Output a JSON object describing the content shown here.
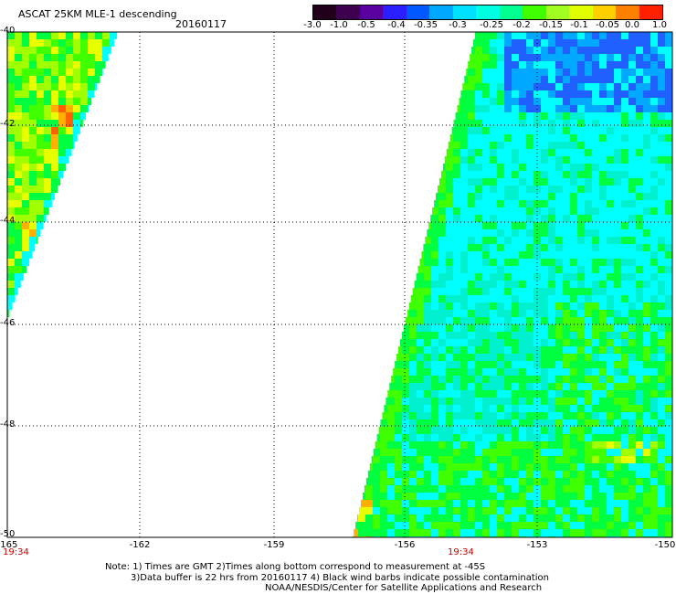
{
  "header": {
    "title": "ASCAT 25KM MLE-1 descending",
    "date": "20160117"
  },
  "colorbar": {
    "colors": [
      "#20001a",
      "#3d004f",
      "#5a00a0",
      "#2a20ff",
      "#0058ff",
      "#00a8ff",
      "#00e0ff",
      "#00ffe0",
      "#00ff90",
      "#40ff00",
      "#a0ff20",
      "#e0ff00",
      "#ffd000",
      "#ff8000",
      "#ff2000"
    ],
    "ticks": [
      "-3.0",
      "-1.0",
      "-0.5",
      "-0.4",
      "-0.35",
      "-0.3",
      "-0.25",
      "-0.2",
      "-0.15",
      "-0.1",
      "-0.05",
      "0.0",
      "1.0"
    ]
  },
  "map": {
    "lat_labels": [
      "-40",
      "-42",
      "-44",
      "-46",
      "-48",
      "-50"
    ],
    "lon_labels": [
      "-165",
      "-162",
      "-159",
      "-156",
      "-153",
      "-150"
    ],
    "time_labels": [
      "19:34",
      "19:34"
    ],
    "palette": {
      "cyan": "#00ffff",
      "aqua": "#00f0d0",
      "green": "#00ff40",
      "lime": "#40ff00",
      "yellowgreen": "#a0ff00",
      "yellow": "#e8ff00",
      "orange": "#ffb000",
      "red": "#ff6000",
      "blue": "#2060ff",
      "skyblue": "#00a8ff"
    }
  },
  "footer": {
    "line1": "Note: 1) Times are GMT 2)Times along bottom correspond to measurement at -45S",
    "line2": "3)Data buffer is 22 hrs from 20160117 4) Black wind barbs indicate possible contamination",
    "line3": "NOAA/NESDIS/Center for Satellite Applications and Research"
  }
}
